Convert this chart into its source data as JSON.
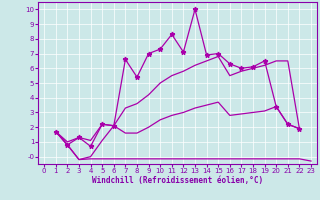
{
  "xlabel": "Windchill (Refroidissement éolien,°C)",
  "bg_color": "#cce8e8",
  "line_color": "#aa00aa",
  "xlim": [
    -0.5,
    23.5
  ],
  "ylim": [
    -0.5,
    10.5
  ],
  "xticks": [
    0,
    1,
    2,
    3,
    4,
    5,
    6,
    7,
    8,
    9,
    10,
    11,
    12,
    13,
    14,
    15,
    16,
    17,
    18,
    19,
    20,
    21,
    22,
    23
  ],
  "yticks": [
    0,
    1,
    2,
    3,
    4,
    5,
    6,
    7,
    8,
    9,
    10
  ],
  "ytick_labels": [
    "-0",
    "1",
    "2",
    "3",
    "4",
    "5",
    "6",
    "7",
    "8",
    "9",
    "10"
  ],
  "series": [
    {
      "x": [
        1,
        2,
        3,
        4,
        5,
        6,
        7,
        8,
        9,
        10,
        11,
        12,
        13,
        14,
        15,
        16,
        17,
        18,
        19,
        20,
        21,
        22
      ],
      "y": [
        1.7,
        0.8,
        1.3,
        0.7,
        2.2,
        2.1,
        6.6,
        5.4,
        7.0,
        7.3,
        8.3,
        7.1,
        10.0,
        6.9,
        7.0,
        6.3,
        6.0,
        6.1,
        6.5,
        3.4,
        2.2,
        1.9
      ],
      "marker": "*",
      "linestyle": "-"
    },
    {
      "x": [
        1,
        2,
        3,
        4,
        5,
        6,
        7,
        8,
        9,
        10,
        11,
        12,
        13,
        14,
        15,
        16,
        17,
        18,
        19,
        20,
        21,
        22
      ],
      "y": [
        1.7,
        1.0,
        1.3,
        1.1,
        2.2,
        2.1,
        3.3,
        3.6,
        4.2,
        5.0,
        5.5,
        5.8,
        6.2,
        6.5,
        6.8,
        5.5,
        5.8,
        6.0,
        6.2,
        6.5,
        6.5,
        1.9
      ],
      "marker": null,
      "linestyle": "-"
    },
    {
      "x": [
        1,
        2,
        3,
        4,
        5,
        6,
        7,
        8,
        9,
        10,
        11,
        12,
        13,
        14,
        15,
        16,
        17,
        18,
        19,
        20,
        21,
        22
      ],
      "y": [
        1.7,
        0.8,
        -0.2,
        0.0,
        1.1,
        2.1,
        1.6,
        1.6,
        2.0,
        2.5,
        2.8,
        3.0,
        3.3,
        3.5,
        3.7,
        2.8,
        2.9,
        3.0,
        3.1,
        3.4,
        2.2,
        1.9
      ],
      "marker": null,
      "linestyle": "-"
    },
    {
      "x": [
        1,
        2,
        3,
        4,
        5,
        6,
        7,
        8,
        9,
        10,
        11,
        12,
        13,
        14,
        15,
        16,
        17,
        18,
        19,
        20,
        21,
        22,
        23
      ],
      "y": [
        1.7,
        0.8,
        -0.2,
        -0.15,
        -0.15,
        -0.15,
        -0.15,
        -0.15,
        -0.15,
        -0.15,
        -0.15,
        -0.15,
        -0.15,
        -0.15,
        -0.15,
        -0.15,
        -0.15,
        -0.15,
        -0.15,
        -0.15,
        -0.15,
        -0.15,
        -0.3
      ],
      "marker": null,
      "linestyle": "-"
    }
  ]
}
